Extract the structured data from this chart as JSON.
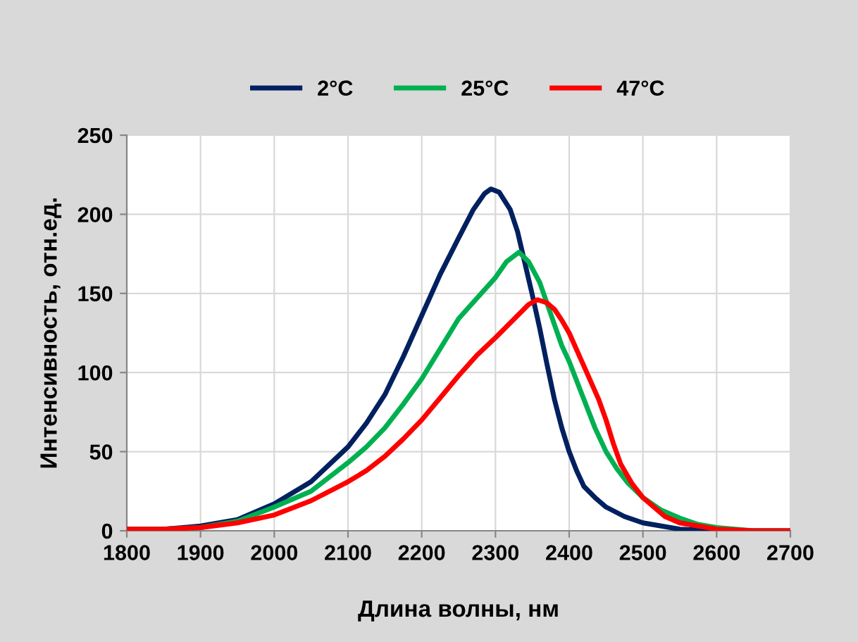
{
  "chart_data": {
    "type": "line",
    "xlabel": "Длина волны, нм",
    "ylabel": "Интенсивность, отн.ед.",
    "xlim": [
      1800,
      2700
    ],
    "ylim": [
      0,
      250
    ],
    "xticks": [
      1800,
      1900,
      2000,
      2100,
      2200,
      2300,
      2400,
      2500,
      2600,
      2700
    ],
    "yticks": [
      0,
      50,
      100,
      150,
      200,
      250
    ],
    "grid": true,
    "legend": "top",
    "marker": "none",
    "line_style": "solid",
    "series": [
      {
        "name": "2°C",
        "color": "#002060",
        "x": [
          1800,
          1850,
          1900,
          1950,
          2000,
          2050,
          2100,
          2125,
          2150,
          2175,
          2200,
          2225,
          2250,
          2270,
          2285,
          2294,
          2305,
          2320,
          2330,
          2340,
          2350,
          2360,
          2370,
          2380,
          2390,
          2400,
          2410,
          2420,
          2435,
          2450,
          2475,
          2500,
          2525,
          2550,
          2600,
          2700
        ],
        "values": [
          1,
          1,
          3,
          7,
          17,
          31,
          53,
          68,
          86,
          110,
          136,
          162,
          185,
          203,
          213,
          216,
          214,
          203,
          189,
          169,
          149,
          128,
          105,
          83,
          65,
          50,
          38,
          28,
          21,
          15,
          9,
          5,
          3,
          1,
          0,
          0
        ]
      },
      {
        "name": "25°C",
        "color": "#00b050",
        "x": [
          1800,
          1850,
          1900,
          1950,
          2000,
          2050,
          2100,
          2125,
          2150,
          2175,
          2200,
          2225,
          2250,
          2275,
          2300,
          2315,
          2332,
          2345,
          2360,
          2375,
          2390,
          2400,
          2420,
          2435,
          2450,
          2465,
          2480,
          2500,
          2525,
          2550,
          2575,
          2600,
          2650,
          2700
        ],
        "values": [
          1,
          1,
          2,
          6,
          15,
          25,
          43,
          53,
          65,
          80,
          96,
          115,
          134,
          147,
          160,
          170,
          176,
          170,
          157,
          137,
          117,
          107,
          83,
          65,
          50,
          39,
          30,
          21,
          13,
          8,
          4,
          2,
          0,
          0
        ]
      },
      {
        "name": "47°C",
        "color": "#ff0000",
        "x": [
          1800,
          1850,
          1900,
          1950,
          2000,
          2050,
          2100,
          2125,
          2150,
          2175,
          2200,
          2225,
          2250,
          2275,
          2300,
          2330,
          2345,
          2357,
          2370,
          2380,
          2390,
          2400,
          2420,
          2440,
          2450,
          2460,
          2470,
          2485,
          2500,
          2530,
          2550,
          2600,
          2650,
          2700
        ],
        "values": [
          1,
          1,
          2,
          5,
          10,
          19,
          31,
          38,
          47,
          58,
          70,
          84,
          98,
          111,
          122,
          136,
          143,
          146,
          144,
          140,
          133,
          125,
          104,
          83,
          70,
          55,
          42,
          30,
          21,
          9,
          5,
          1,
          0,
          0
        ]
      }
    ]
  }
}
